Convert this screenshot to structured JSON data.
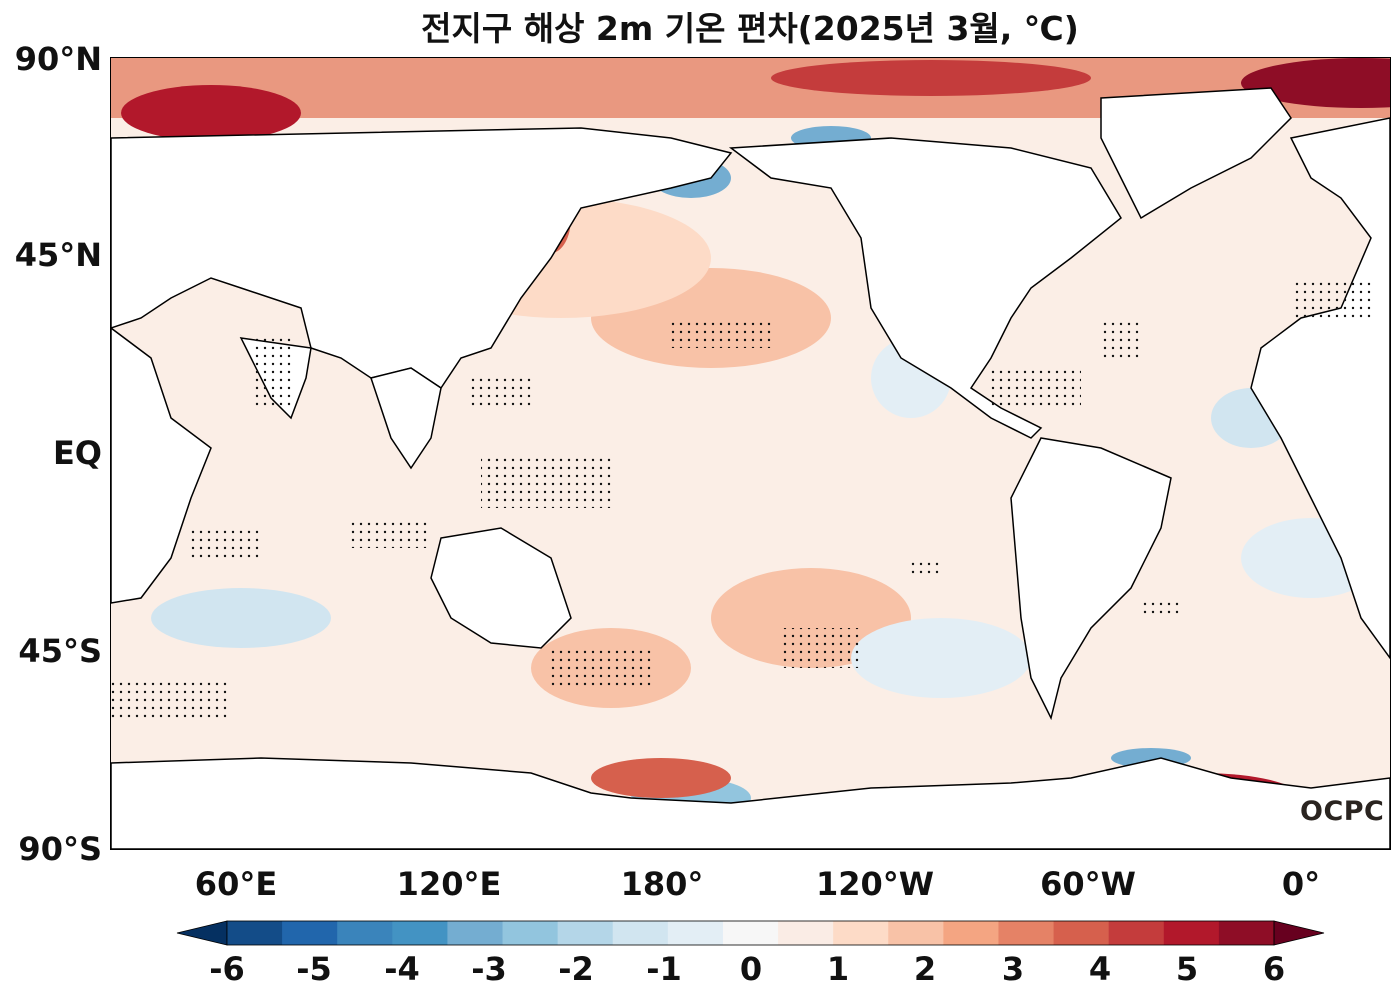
{
  "title": "전지구 해상 2m 기온 편차(2025년 3월, ℃)",
  "logo": "OCPC",
  "lat_labels": [
    "90°N",
    "45°N",
    "EQ",
    "45°S",
    "90°S"
  ],
  "lon_labels": [
    "60°E",
    "120°E",
    "180°",
    "120°W",
    "60°W",
    "0°"
  ],
  "colorbar": {
    "ticks": [
      "-6",
      "-5",
      "-4",
      "-3",
      "-2",
      "-1",
      "0",
      "1",
      "2",
      "3",
      "4",
      "5",
      "6"
    ],
    "colors": [
      "#053061",
      "#134c88",
      "#2166ac",
      "#3a84bb",
      "#4393c3",
      "#74add1",
      "#92c5de",
      "#b4d6e8",
      "#d1e5f0",
      "#e3eef5",
      "#f7f7f7",
      "#faece5",
      "#fddbc7",
      "#f8c2a7",
      "#f4a582",
      "#e58266",
      "#d6604d",
      "#c43c3c",
      "#b2182b",
      "#8e0d26",
      "#67001f"
    ],
    "extend": "both"
  }
}
